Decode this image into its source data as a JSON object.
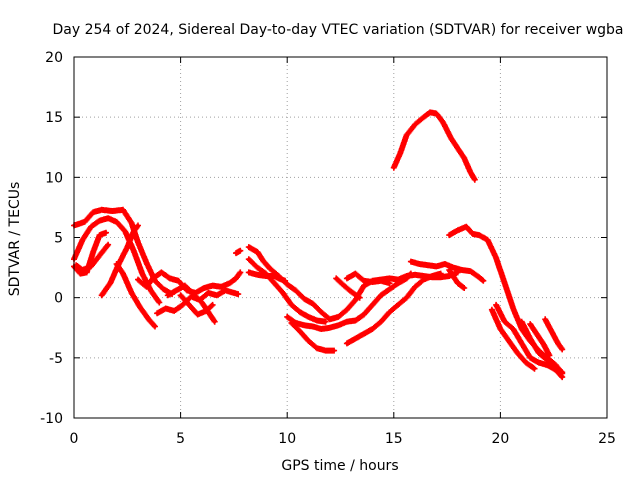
{
  "chart_data": {
    "type": "scatter",
    "title": "Day 254 of 2024, Sidereal Day-to-day VTEC variation (SDTVAR) for receiver wgba",
    "xlabel": "GPS time / hours",
    "ylabel": "SDTVAR / TECUs",
    "xlim": [
      0,
      25
    ],
    "ylim": [
      -10,
      20
    ],
    "xticks": [
      0,
      5,
      10,
      15,
      20,
      25
    ],
    "yticks": [
      -10,
      -5,
      0,
      5,
      10,
      15,
      20
    ],
    "grid": true,
    "legend": "none",
    "series_color": "#ff0000",
    "series": [
      {
        "name": "s1",
        "points": [
          [
            0,
            6.0
          ],
          [
            0.5,
            6.3
          ],
          [
            0.9,
            7.1
          ],
          [
            1.3,
            7.3
          ],
          [
            1.8,
            7.2
          ],
          [
            2.3,
            7.3
          ],
          [
            2.7,
            6.2
          ],
          [
            3.0,
            4.6
          ],
          [
            3.4,
            2.9
          ],
          [
            3.8,
            1.4
          ],
          [
            4.2,
            0.7
          ],
          [
            4.6,
            0.3
          ]
        ]
      },
      {
        "name": "s2",
        "points": [
          [
            0,
            3.2
          ],
          [
            0.4,
            4.8
          ],
          [
            0.8,
            5.9
          ],
          [
            1.2,
            6.4
          ],
          [
            1.6,
            6.6
          ],
          [
            2.0,
            6.3
          ],
          [
            2.4,
            5.5
          ],
          [
            2.8,
            3.9
          ],
          [
            3.2,
            2.0
          ],
          [
            3.6,
            0.6
          ],
          [
            4.0,
            -0.4
          ]
        ]
      },
      {
        "name": "s3",
        "points": [
          [
            0,
            2.6
          ],
          [
            0.3,
            2.0
          ],
          [
            0.6,
            2.1
          ],
          [
            0.9,
            3.8
          ],
          [
            1.2,
            5.2
          ],
          [
            1.5,
            5.4
          ]
        ]
      },
      {
        "name": "s4",
        "points": [
          [
            0.1,
            2.7
          ],
          [
            0.4,
            2.3
          ],
          [
            0.8,
            2.6
          ],
          [
            1.2,
            3.5
          ],
          [
            1.6,
            4.4
          ]
        ]
      },
      {
        "name": "s5",
        "points": [
          [
            1.3,
            0.2
          ],
          [
            1.7,
            1.2
          ],
          [
            2.1,
            2.8
          ],
          [
            2.5,
            4.2
          ],
          [
            2.8,
            5.5
          ],
          [
            3.0,
            6.0
          ]
        ]
      },
      {
        "name": "s6",
        "points": [
          [
            2.0,
            2.8
          ],
          [
            2.3,
            2.0
          ],
          [
            2.7,
            0.4
          ],
          [
            3.1,
            -0.8
          ],
          [
            3.5,
            -1.8
          ],
          [
            3.8,
            -2.4
          ]
        ]
      },
      {
        "name": "s7",
        "points": [
          [
            3.0,
            1.5
          ],
          [
            3.4,
            0.9
          ],
          [
            3.7,
            1.6
          ],
          [
            4.1,
            2.1
          ],
          [
            4.5,
            1.6
          ],
          [
            4.9,
            1.4
          ],
          [
            5.3,
            0.6
          ],
          [
            5.7,
            0.4
          ],
          [
            6.1,
            0.8
          ],
          [
            6.5,
            1.0
          ],
          [
            6.9,
            0.9
          ],
          [
            7.3,
            1.2
          ],
          [
            7.6,
            1.6
          ],
          [
            7.8,
            2.1
          ]
        ]
      },
      {
        "name": "s8",
        "points": [
          [
            3.9,
            -1.3
          ],
          [
            4.3,
            -0.9
          ],
          [
            4.7,
            -1.1
          ],
          [
            5.1,
            -0.6
          ],
          [
            5.5,
            0.1
          ],
          [
            5.9,
            -0.2
          ],
          [
            6.3,
            0.4
          ],
          [
            6.7,
            0.2
          ],
          [
            7.1,
            0.6
          ],
          [
            7.5,
            0.4
          ],
          [
            7.7,
            0.3
          ]
        ]
      },
      {
        "name": "s9",
        "points": [
          [
            4.4,
            0.2
          ],
          [
            4.8,
            0.6
          ],
          [
            5.2,
            1.0
          ],
          [
            5.6,
            0.3
          ],
          [
            6.0,
            -0.4
          ],
          [
            6.3,
            -1.2
          ],
          [
            6.6,
            -2.0
          ]
        ]
      },
      {
        "name": "s10",
        "points": [
          [
            5.0,
            0.2
          ],
          [
            5.4,
            -0.6
          ],
          [
            5.8,
            -1.4
          ],
          [
            6.2,
            -1.1
          ],
          [
            6.5,
            -0.6
          ]
        ]
      },
      {
        "name": "s11",
        "points": [
          [
            7.6,
            3.7
          ],
          [
            7.8,
            3.9
          ]
        ]
      },
      {
        "name": "s12",
        "points": [
          [
            8.2,
            4.2
          ],
          [
            8.6,
            3.8
          ],
          [
            8.9,
            3.0
          ],
          [
            9.2,
            2.4
          ],
          [
            9.6,
            1.8
          ],
          [
            10.0,
            1.1
          ],
          [
            10.4,
            0.6
          ],
          [
            10.8,
            -0.1
          ],
          [
            11.2,
            -0.5
          ],
          [
            11.6,
            -1.2
          ],
          [
            12.0,
            -1.8
          ],
          [
            12.4,
            -1.6
          ],
          [
            12.8,
            -1.0
          ],
          [
            13.2,
            -0.2
          ],
          [
            13.6,
            1.0
          ],
          [
            14.0,
            1.4
          ],
          [
            14.4,
            1.5
          ],
          [
            14.8,
            1.6
          ],
          [
            15.2,
            1.5
          ],
          [
            15.6,
            1.8
          ],
          [
            16.0,
            1.9
          ],
          [
            16.4,
            1.8
          ],
          [
            16.8,
            1.7
          ],
          [
            17.2,
            1.7
          ],
          [
            17.6,
            1.8
          ],
          [
            18.0,
            2.1
          ]
        ]
      },
      {
        "name": "s13",
        "points": [
          [
            8.2,
            3.2
          ],
          [
            8.6,
            2.5
          ],
          [
            9.0,
            2.0
          ],
          [
            9.4,
            1.2
          ],
          [
            9.8,
            0.4
          ],
          [
            10.2,
            -0.6
          ],
          [
            10.6,
            -1.2
          ],
          [
            11.0,
            -1.6
          ],
          [
            11.4,
            -1.9
          ],
          [
            11.8,
            -2.0
          ]
        ]
      },
      {
        "name": "s14",
        "points": [
          [
            8.2,
            2.1
          ],
          [
            8.6,
            1.9
          ],
          [
            9.0,
            1.8
          ],
          [
            9.4,
            1.8
          ],
          [
            9.6,
            1.6
          ],
          [
            9.9,
            1.4
          ]
        ]
      },
      {
        "name": "s15",
        "points": [
          [
            10.0,
            -1.6
          ],
          [
            10.4,
            -2.1
          ],
          [
            10.8,
            -2.3
          ],
          [
            11.2,
            -2.4
          ],
          [
            11.6,
            -2.6
          ],
          [
            12.0,
            -2.5
          ],
          [
            12.4,
            -2.3
          ],
          [
            12.8,
            -2.0
          ],
          [
            13.2,
            -1.9
          ],
          [
            13.6,
            -1.4
          ],
          [
            14.0,
            -0.6
          ],
          [
            14.4,
            0.2
          ],
          [
            14.8,
            0.7
          ],
          [
            15.2,
            1.2
          ],
          [
            15.6,
            1.6
          ],
          [
            15.8,
            2.0
          ]
        ]
      },
      {
        "name": "s16",
        "points": [
          [
            10.2,
            -2.1
          ],
          [
            10.6,
            -2.8
          ],
          [
            11.0,
            -3.6
          ],
          [
            11.4,
            -4.2
          ],
          [
            11.8,
            -4.4
          ],
          [
            12.2,
            -4.4
          ]
        ]
      },
      {
        "name": "s17",
        "points": [
          [
            12.3,
            1.6
          ],
          [
            12.6,
            1.1
          ],
          [
            13.0,
            0.5
          ],
          [
            13.4,
            0.0
          ]
        ]
      },
      {
        "name": "s18",
        "points": [
          [
            12.8,
            1.6
          ],
          [
            13.2,
            2.0
          ],
          [
            13.6,
            1.4
          ],
          [
            14.0,
            1.3
          ],
          [
            14.4,
            1.4
          ],
          [
            14.8,
            1.2
          ]
        ]
      },
      {
        "name": "s19",
        "points": [
          [
            12.8,
            -3.8
          ],
          [
            13.2,
            -3.4
          ],
          [
            13.6,
            -3.0
          ],
          [
            14.0,
            -2.6
          ],
          [
            14.4,
            -2.0
          ],
          [
            14.8,
            -1.2
          ],
          [
            15.2,
            -0.6
          ],
          [
            15.6,
            0.0
          ],
          [
            16.0,
            0.9
          ],
          [
            16.4,
            1.5
          ],
          [
            16.8,
            1.8
          ],
          [
            17.2,
            2.0
          ]
        ]
      },
      {
        "name": "s20",
        "points": [
          [
            15.0,
            10.8
          ],
          [
            15.3,
            12.0
          ],
          [
            15.6,
            13.5
          ],
          [
            16.0,
            14.4
          ],
          [
            16.4,
            15.0
          ],
          [
            16.7,
            15.4
          ],
          [
            17.0,
            15.3
          ],
          [
            17.3,
            14.6
          ],
          [
            17.7,
            13.2
          ],
          [
            18.0,
            12.4
          ],
          [
            18.3,
            11.6
          ],
          [
            18.6,
            10.4
          ],
          [
            18.8,
            9.8
          ]
        ]
      },
      {
        "name": "s21",
        "points": [
          [
            15.8,
            3.0
          ],
          [
            16.2,
            2.8
          ],
          [
            16.6,
            2.7
          ],
          [
            17.0,
            2.6
          ],
          [
            17.4,
            2.8
          ],
          [
            17.8,
            2.5
          ],
          [
            18.2,
            2.3
          ],
          [
            18.6,
            2.2
          ],
          [
            19.0,
            1.7
          ],
          [
            19.2,
            1.4
          ]
        ]
      },
      {
        "name": "s22",
        "points": [
          [
            17.6,
            2.3
          ],
          [
            18.0,
            1.2
          ],
          [
            18.3,
            0.8
          ]
        ]
      },
      {
        "name": "s23",
        "points": [
          [
            17.6,
            5.2
          ],
          [
            18.0,
            5.6
          ],
          [
            18.4,
            5.9
          ],
          [
            18.7,
            5.3
          ],
          [
            19.0,
            5.2
          ],
          [
            19.4,
            4.8
          ],
          [
            19.8,
            3.3
          ],
          [
            20.2,
            1.2
          ],
          [
            20.6,
            -0.9
          ],
          [
            21.0,
            -2.6
          ],
          [
            21.4,
            -3.6
          ],
          [
            21.8,
            -4.4
          ],
          [
            22.2,
            -5.0
          ],
          [
            22.6,
            -5.6
          ],
          [
            22.9,
            -6.3
          ]
        ]
      },
      {
        "name": "s24",
        "points": [
          [
            19.8,
            -0.6
          ],
          [
            20.2,
            -2.0
          ],
          [
            20.6,
            -2.6
          ],
          [
            21.0,
            -3.8
          ],
          [
            21.4,
            -5.0
          ],
          [
            21.8,
            -5.4
          ],
          [
            22.2,
            -5.6
          ],
          [
            22.6,
            -6.0
          ],
          [
            22.9,
            -6.6
          ]
        ]
      },
      {
        "name": "s25",
        "points": [
          [
            19.6,
            -1.0
          ],
          [
            20.0,
            -2.6
          ],
          [
            20.4,
            -3.6
          ],
          [
            20.8,
            -4.6
          ],
          [
            21.2,
            -5.4
          ],
          [
            21.6,
            -5.9
          ]
        ]
      },
      {
        "name": "s26",
        "points": [
          [
            21.0,
            -2.0
          ],
          [
            21.4,
            -3.4
          ],
          [
            21.8,
            -4.6
          ],
          [
            22.2,
            -5.2
          ],
          [
            22.6,
            -5.8
          ],
          [
            22.9,
            -6.2
          ]
        ]
      },
      {
        "name": "s27",
        "points": [
          [
            22.1,
            -1.8
          ],
          [
            22.4,
            -2.8
          ],
          [
            22.7,
            -3.8
          ],
          [
            22.9,
            -4.3
          ]
        ]
      },
      {
        "name": "s28",
        "points": [
          [
            21.4,
            -2.2
          ],
          [
            21.7,
            -3.0
          ],
          [
            22.0,
            -3.8
          ],
          [
            22.3,
            -4.8
          ]
        ]
      }
    ]
  }
}
